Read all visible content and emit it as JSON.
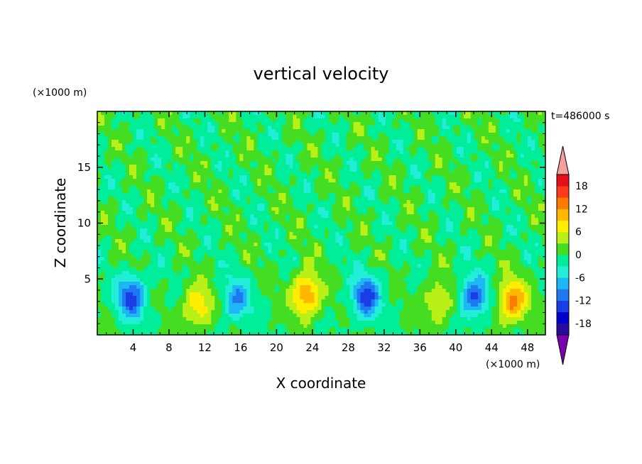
{
  "chart_data": {
    "type": "heatmap",
    "title": "vertical velocity",
    "xlabel": "X coordinate",
    "ylabel": "Z coordinate",
    "x_unit": "(×1000 m)",
    "y_unit": "(×1000 m)",
    "time_label": "t=486000 s",
    "xlim": [
      0,
      50
    ],
    "ylim": [
      0,
      20
    ],
    "x_ticks": [
      4,
      8,
      12,
      16,
      20,
      24,
      28,
      32,
      36,
      40,
      44,
      48
    ],
    "y_ticks": [
      5,
      10,
      15
    ],
    "colorbar": {
      "levels": [
        -21,
        -18,
        -15,
        -12,
        -9,
        -6,
        -3,
        0,
        3,
        6,
        9,
        12,
        15,
        18,
        21
      ],
      "tick_labels": [
        18,
        12,
        6,
        0,
        -6,
        -12,
        -18
      ],
      "colors": [
        "#7a00b0",
        "#2a0a9c",
        "#0000cc",
        "#1a3ee6",
        "#1e78f0",
        "#1fb6f5",
        "#22eed8",
        "#00ee99",
        "#44dd22",
        "#b8f018",
        "#ffee00",
        "#ffb800",
        "#ff7a00",
        "#ff3a1a",
        "#e6101a",
        "#f5a0a0"
      ],
      "extend": "both"
    },
    "features": [
      {
        "x": 3.8,
        "z": 3.4,
        "w": -13
      },
      {
        "x": 11.2,
        "z": 2.6,
        "w": 9
      },
      {
        "x": 15.5,
        "z": 3.1,
        "w": -9
      },
      {
        "x": 23.3,
        "z": 3.6,
        "w": 13
      },
      {
        "x": 30.0,
        "z": 3.4,
        "w": -13
      },
      {
        "x": 38.0,
        "z": 2.9,
        "w": 7
      },
      {
        "x": 42.0,
        "z": 3.4,
        "w": -12
      },
      {
        "x": 46.3,
        "z": 3.0,
        "w": 13
      }
    ]
  }
}
